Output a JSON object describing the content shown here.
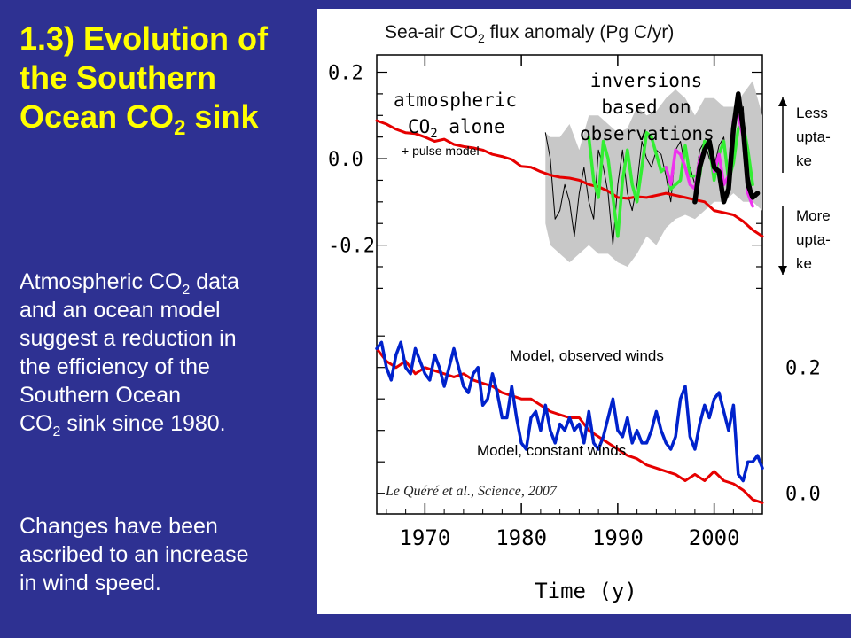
{
  "slide": {
    "title_line1": "1.3) Evolution of",
    "title_line2": "the Southern",
    "title_line3_pre": "Ocean CO",
    "title_line3_sub": "2",
    "title_line3_post": " sink",
    "para1_line1_pre": "Atmospheric CO",
    "para1_line1_sub": "2",
    "para1_line1_post": " data",
    "para1_line2": "and an ocean model",
    "para1_line3": "suggest a reduction in",
    "para1_line4": "the efficiency of the",
    "para1_line5": "Southern Ocean",
    "para1_line6_pre": "CO",
    "para1_line6_sub": "2",
    "para1_line6_post": " sink since 1980.",
    "para2_line1": "Changes have been",
    "para2_line2": "ascribed to an increase",
    "para2_line3": "in wind speed."
  },
  "chart_data": {
    "type": "line",
    "title_pre": "Sea-air CO",
    "title_sub": "2",
    "title_post": " flux anomaly (Pg C/yr)",
    "xlabel": "Time  (y)",
    "xlim": [
      1965,
      2005
    ],
    "x_ticks": [
      "1970",
      "1980",
      "1990",
      "2000"
    ],
    "upper_panel": {
      "ylim": [
        -0.33,
        0.24
      ],
      "y_ticks": [
        "0.2",
        "0.0",
        "-0.2"
      ],
      "annotation_left_line1": "atmospheric",
      "annotation_left_line2_pre": "CO",
      "annotation_left_line2_sub": "2",
      "annotation_left_line2_post": " alone",
      "annotation_pulse": "+ pulse model",
      "annotation_right_line1": "inversions",
      "annotation_right_line2": "based on",
      "annotation_right_line3": "observations",
      "less_uptake_line1": "Less",
      "less_uptake_line2": "upta-",
      "less_uptake_line3": "ke",
      "more_uptake_line1": "More",
      "more_uptake_line2": "upta-",
      "more_uptake_line3": "ke",
      "colors": {
        "red": "#e60000",
        "green": "#33ee33",
        "magenta": "#ee33ee",
        "black": "#000000",
        "thin": "#000000",
        "band": "#c8c8c8"
      },
      "red_series": {
        "x": [
          1965,
          1966,
          1967,
          1968,
          1969,
          1970,
          1971,
          1972,
          1973,
          1974,
          1975,
          1976,
          1977,
          1978,
          1979,
          1980,
          1981,
          1982,
          1983,
          1984,
          1985,
          1986,
          1987,
          1988,
          1989,
          1990,
          1991,
          1992,
          1993,
          1994,
          1995,
          1996,
          1997,
          1998,
          1999,
          2000,
          2001,
          2002,
          2003,
          2004,
          2005
        ],
        "y": [
          0.088,
          0.08,
          0.068,
          0.06,
          0.058,
          0.05,
          0.04,
          0.045,
          0.033,
          0.028,
          0.025,
          0.02,
          0.01,
          0.005,
          -0.002,
          -0.018,
          -0.02,
          -0.03,
          -0.038,
          -0.043,
          -0.045,
          -0.05,
          -0.06,
          -0.065,
          -0.075,
          -0.09,
          -0.092,
          -0.088,
          -0.09,
          -0.085,
          -0.08,
          -0.085,
          -0.09,
          -0.095,
          -0.1,
          -0.12,
          -0.125,
          -0.13,
          -0.145,
          -0.165,
          -0.18
        ]
      },
      "band_series": {
        "x": [
          1982.5,
          1983,
          1984,
          1985,
          1986,
          1987,
          1988,
          1989,
          1990,
          1991,
          1992,
          1993,
          1994,
          1995,
          1996,
          1997,
          1998,
          1999,
          2000,
          2001,
          2002,
          2003,
          2004,
          2005
        ],
        "upper": [
          0.06,
          0.05,
          0.05,
          0.08,
          0.02,
          0.1,
          0.1,
          0.08,
          0.06,
          0.07,
          0.12,
          0.1,
          0.11,
          0.14,
          0.16,
          0.14,
          0.1,
          0.14,
          0.14,
          0.12,
          0.12,
          0.15,
          0.18,
          0.1
        ],
        "lower": [
          -0.15,
          -0.2,
          -0.22,
          -0.24,
          -0.22,
          -0.2,
          -0.22,
          -0.22,
          -0.24,
          -0.25,
          -0.22,
          -0.18,
          -0.2,
          -0.16,
          -0.14,
          -0.13,
          -0.14,
          -0.12,
          -0.1,
          -0.1,
          -0.08,
          -0.1,
          -0.1,
          -0.12
        ]
      },
      "thin_series": {
        "x": [
          1982.5,
          1983,
          1983.5,
          1984,
          1984.5,
          1985,
          1985.5,
          1986,
          1986.5,
          1987,
          1987.5,
          1988,
          1988.5,
          1989,
          1989.5,
          1990,
          1990.5,
          1991,
          1991.5,
          1992,
          1992.5,
          1993,
          1993.5,
          1994,
          1994.5,
          1995,
          1995.5,
          1996,
          1996.5,
          1997,
          1997.5,
          1998,
          1998.5,
          1999,
          1999.5,
          2000,
          2000.5,
          2001,
          2001.5,
          2002,
          2002.5,
          2003,
          2003.5,
          2004
        ],
        "y": [
          0.06,
          0.0,
          -0.14,
          -0.12,
          -0.06,
          -0.1,
          -0.18,
          -0.08,
          -0.02,
          -0.1,
          -0.14,
          0.02,
          -0.02,
          -0.08,
          -0.2,
          -0.06,
          0.02,
          -0.08,
          -0.12,
          -0.06,
          0.04,
          0.0,
          -0.02,
          0.02,
          0.01,
          -0.04,
          -0.1,
          0.02,
          0.04,
          -0.02,
          -0.02,
          -0.06,
          0.02,
          0.04,
          0.0,
          -0.02,
          0.03,
          0.05,
          -0.04,
          0.02,
          0.06,
          0.12,
          -0.03,
          -0.08
        ]
      },
      "green_series": {
        "x": [
          1987.0,
          1987.5,
          1988.0,
          1988.5,
          1989.0,
          1989.5,
          1990.0,
          1990.5,
          1991.0,
          1991.5,
          1992.0,
          1992.5,
          1993.0,
          1993.5,
          1994.0,
          1994.5,
          1995.0,
          1995.5,
          1996.0,
          1996.5,
          1997.0,
          1997.5,
          1998.0,
          1998.5,
          1999.0,
          1999.5,
          2000.0,
          2000.5,
          2001.0,
          2001.5,
          2002.0,
          2002.5,
          2003.0,
          2003.5,
          2004.0
        ],
        "y": [
          0.05,
          -0.05,
          -0.09,
          0.04,
          0.0,
          -0.09,
          -0.18,
          -0.05,
          0.02,
          -0.06,
          -0.1,
          -0.02,
          0.06,
          0.05,
          0.01,
          -0.03,
          -0.02,
          -0.07,
          -0.06,
          -0.05,
          0.03,
          -0.04,
          -0.04,
          -0.04,
          0.04,
          0.03,
          -0.05,
          0.01,
          0.04,
          -0.05,
          -0.01,
          0.07,
          0.08,
          0.02,
          -0.06
        ]
      },
      "magenta_series": {
        "x": [
          1995.0,
          1995.5,
          1996.0,
          1996.5,
          1997.0,
          1997.5,
          1998.0,
          1998.5,
          1999.0,
          1999.5,
          2000.0,
          2000.5,
          2001.0,
          2001.5,
          2002.0,
          2002.5,
          2003.0,
          2003.5,
          2004.0
        ],
        "y": [
          -0.02,
          -0.06,
          0.02,
          0.01,
          -0.02,
          -0.06,
          -0.07,
          0.0,
          0.02,
          0.04,
          -0.03,
          0.01,
          -0.06,
          -0.04,
          0.09,
          0.1,
          0.05,
          -0.08,
          -0.11
        ]
      },
      "black_series": {
        "x": [
          1998.0,
          1998.5,
          1999.0,
          1999.5,
          2000.0,
          2000.5,
          2001.0,
          2001.5,
          2002.0,
          2002.5,
          2003.0,
          2003.5,
          2004.0,
          2004.5
        ],
        "y": [
          -0.1,
          -0.02,
          0.02,
          0.04,
          -0.02,
          -0.03,
          -0.1,
          -0.07,
          0.07,
          0.15,
          0.07,
          -0.06,
          -0.09,
          -0.08
        ]
      }
    },
    "lower_panel": {
      "ylim": [
        -0.03,
        0.27
      ],
      "y_ticks": [
        "0.2",
        "0.0"
      ],
      "colors": {
        "red": "#e60000",
        "blue": "#0022cc"
      },
      "observed_winds_label": "Model, observed winds",
      "constant_winds_label": "Model, constant winds",
      "red_series": {
        "x": [
          1965,
          1966,
          1967,
          1968,
          1969,
          1970,
          1971,
          1972,
          1973,
          1974,
          1975,
          1976,
          1977,
          1978,
          1979,
          1980,
          1981,
          1982,
          1983,
          1984,
          1985,
          1986,
          1987,
          1988,
          1989,
          1990,
          1991,
          1992,
          1993,
          1994,
          1995,
          1996,
          1997,
          1998,
          1999,
          2000,
          2001,
          2002,
          2003,
          2004,
          2005
        ],
        "y": [
          0.23,
          0.21,
          0.2,
          0.21,
          0.19,
          0.2,
          0.195,
          0.19,
          0.185,
          0.19,
          0.18,
          0.175,
          0.17,
          0.16,
          0.155,
          0.15,
          0.15,
          0.14,
          0.13,
          0.125,
          0.12,
          0.12,
          0.1,
          0.09,
          0.08,
          0.07,
          0.06,
          0.055,
          0.045,
          0.04,
          0.035,
          0.03,
          0.02,
          0.03,
          0.02,
          0.035,
          0.02,
          0.015,
          0.005,
          -0.01,
          -0.015
        ]
      },
      "blue_series": {
        "x": [
          1965.0,
          1965.5,
          1966.0,
          1966.5,
          1967.0,
          1967.5,
          1968.0,
          1968.5,
          1969.0,
          1969.5,
          1970.0,
          1970.5,
          1971.0,
          1971.5,
          1972.0,
          1972.5,
          1973.0,
          1973.5,
          1974.0,
          1974.5,
          1975.0,
          1975.5,
          1976.0,
          1976.5,
          1977.0,
          1977.5,
          1978.0,
          1978.5,
          1979.0,
          1979.5,
          1980.0,
          1980.5,
          1981.0,
          1981.5,
          1982.0,
          1982.5,
          1983.0,
          1983.5,
          1984.0,
          1984.5,
          1985.0,
          1985.5,
          1986.0,
          1986.5,
          1987.0,
          1987.5,
          1988.0,
          1988.5,
          1989.0,
          1989.5,
          1990.0,
          1990.5,
          1991.0,
          1991.5,
          1992.0,
          1992.5,
          1993.0,
          1993.5,
          1994.0,
          1994.5,
          1995.0,
          1995.5,
          1996.0,
          1996.5,
          1997.0,
          1997.5,
          1998.0,
          1998.5,
          1999.0,
          1999.5,
          2000.0,
          2000.5,
          2001.0,
          2001.5,
          2002.0,
          2002.5,
          2003.0,
          2003.5,
          2004.0,
          2004.5,
          2005.0
        ],
        "y": [
          0.23,
          0.24,
          0.2,
          0.18,
          0.22,
          0.24,
          0.2,
          0.19,
          0.23,
          0.21,
          0.19,
          0.18,
          0.22,
          0.2,
          0.17,
          0.2,
          0.23,
          0.2,
          0.17,
          0.16,
          0.19,
          0.2,
          0.14,
          0.15,
          0.19,
          0.16,
          0.12,
          0.12,
          0.17,
          0.12,
          0.08,
          0.07,
          0.12,
          0.13,
          0.1,
          0.14,
          0.1,
          0.08,
          0.11,
          0.1,
          0.12,
          0.1,
          0.11,
          0.08,
          0.13,
          0.08,
          0.07,
          0.09,
          0.12,
          0.15,
          0.1,
          0.09,
          0.12,
          0.08,
          0.1,
          0.08,
          0.08,
          0.1,
          0.13,
          0.1,
          0.08,
          0.07,
          0.09,
          0.15,
          0.17,
          0.09,
          0.07,
          0.11,
          0.14,
          0.12,
          0.15,
          0.16,
          0.13,
          0.1,
          0.14,
          0.03,
          0.02,
          0.05,
          0.05,
          0.06,
          0.04
        ]
      }
    },
    "citation": "Le Quéré et al., Science, 2007"
  }
}
